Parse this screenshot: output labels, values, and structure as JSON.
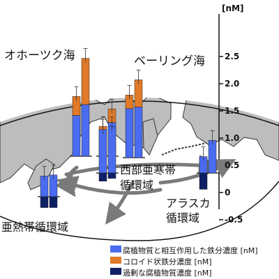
{
  "unit_label": "[nM]",
  "axis_ticks": [
    "2.5",
    "2.0",
    "1.5",
    "1.0",
    "0.5",
    "0",
    "-0.5"
  ],
  "regions": {
    "okhotsk": "オホーツク海",
    "bering": "ベーリング海",
    "western_subarctic_line1": "西部亜寒帯",
    "western_subarctic_line2": "循環域",
    "alaska_line1": "アラスカ",
    "alaska_line2": "循環域",
    "subtropical": "亜熱帯循環域"
  },
  "legend": [
    {
      "label": "腐植物質と相互作用した鉄分濃度 [nM]",
      "color": "#4a6cf0"
    },
    {
      "label": "コロイド状鉄分濃度 [nM]",
      "color": "#e07a28"
    },
    {
      "label": "過剰な腐植物質濃度 [nM]",
      "color": "#0f1f66"
    }
  ],
  "chart_data": {
    "type": "bar",
    "unit": "nM",
    "ylim": [
      -0.5,
      2.5
    ],
    "series_names": [
      "腐植物質と相互作用した鉄分濃度",
      "コロイド状鉄分濃度",
      "過剰な腐植物質濃度"
    ],
    "stations": [
      {
        "bars": [
          {
            "humic_fe": 0.75,
            "colloidal_fe": 0.35,
            "excess_humic": 0
          },
          {
            "humic_fe": 0.95,
            "colloidal_fe": 0.85,
            "excess_humic": 0
          }
        ]
      },
      {
        "bars": [
          {
            "humic_fe": 0.45,
            "colloidal_fe": 0.1,
            "excess_humic": 0
          },
          {
            "humic_fe": 0.62,
            "colloidal_fe": 0.25,
            "excess_humic": 0
          }
        ]
      },
      {
        "bars": [
          {
            "humic_fe": 0.9,
            "colloidal_fe": 0.25,
            "excess_humic": 0
          },
          {
            "humic_fe": 0.93,
            "colloidal_fe": 0.5,
            "excess_humic": 0
          }
        ]
      },
      {
        "bars": [
          {
            "humic_fe": 0.8,
            "colloidal_fe": 0,
            "excess_humic": -0.15
          },
          {
            "humic_fe": 0.85,
            "colloidal_fe": 0,
            "excess_humic": -0.1
          }
        ]
      },
      {
        "bars": [
          {
            "humic_fe": 0.38,
            "colloidal_fe": 0,
            "excess_humic": -0.2
          },
          {
            "humic_fe": 0.4,
            "colloidal_fe": 0,
            "excess_humic": -0.2
          }
        ]
      },
      {
        "bars": [
          {
            "humic_fe": 0.3,
            "colloidal_fe": 0,
            "excess_humic": -0.3
          },
          {
            "humic_fe": 0.6,
            "colloidal_fe": 0,
            "excess_humic": 0
          }
        ]
      }
    ]
  }
}
